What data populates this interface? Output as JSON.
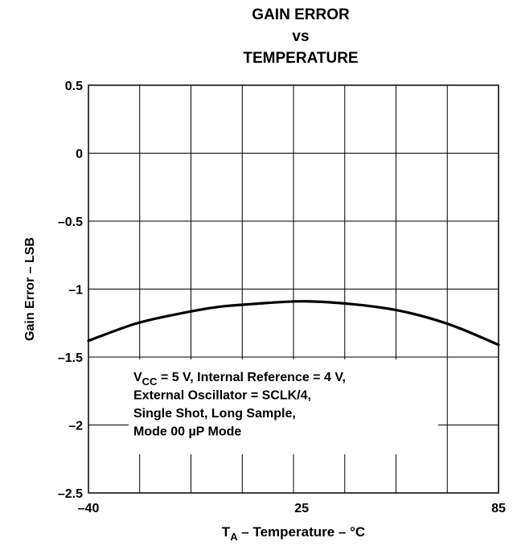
{
  "chart_data": {
    "type": "line",
    "title": [
      "GAIN ERROR",
      "vs",
      "TEMPERATURE"
    ],
    "xlabel": {
      "main": "T",
      "sub": "A",
      "rest": " – Temperature – °C"
    },
    "ylabel": "Gain Error – LSB",
    "xlim": [
      -40,
      85
    ],
    "ylim": [
      -2.5,
      0.5
    ],
    "x_ticks": [
      -40,
      25,
      85
    ],
    "x_tick_labels": [
      "–40",
      "25",
      "85"
    ],
    "x_grid_divisions": 8,
    "y_ticks": [
      0.5,
      0,
      -0.5,
      -1,
      -1.5,
      -2,
      -2.5
    ],
    "y_tick_labels": [
      "0.5",
      "0",
      "–0.5",
      "–1",
      "–1.5",
      "–2",
      "–2.5"
    ],
    "grid": true,
    "series": [
      {
        "x": [
          -40,
          -25,
          -10,
          0,
          10,
          25,
          40,
          55,
          70,
          85
        ],
        "y": [
          -1.38,
          -1.25,
          -1.17,
          -1.13,
          -1.11,
          -1.09,
          -1.11,
          -1.16,
          -1.26,
          -1.41
        ]
      }
    ],
    "annotation": {
      "lines": [
        {
          "pre": "V",
          "sub": "CC",
          "post": " = 5 V, Internal Reference = 4 V,"
        },
        {
          "pre": "External Oscillator = SCLK/4,"
        },
        {
          "pre": "Single Shot, Long Sample,"
        },
        {
          "pre": "Mode 00 µP Mode"
        }
      ]
    }
  }
}
